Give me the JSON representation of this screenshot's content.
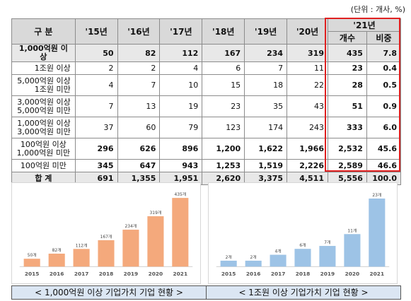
{
  "unit_note": "(단위 : 개사, %)",
  "table": {
    "header": {
      "category": "구  분",
      "years": [
        "'15년",
        "'16년",
        "'17년",
        "'18년",
        "'19년",
        "'20년"
      ],
      "y21": "'21년",
      "count": "개수",
      "share": "비중"
    },
    "rows": [
      {
        "label": "1,000억원 이상",
        "values": [
          "50",
          "82",
          "112",
          "167",
          "234",
          "319"
        ],
        "count": "435",
        "share": "7.8"
      },
      {
        "label": "1조원 이상",
        "values": [
          "2",
          "2",
          "4",
          "6",
          "7",
          "11"
        ],
        "count": "23",
        "share": "0.4"
      },
      {
        "label": "5,000억원 이상\n1조원 미만",
        "values": [
          "4",
          "7",
          "10",
          "15",
          "18",
          "22"
        ],
        "count": "28",
        "share": "0.5"
      },
      {
        "label": "3,000억원 이상\n5,000억원 미만",
        "values": [
          "7",
          "13",
          "19",
          "23",
          "35",
          "43"
        ],
        "count": "51",
        "share": "0.9"
      },
      {
        "label": "1,000억원 이상\n3,000억원 미만",
        "values": [
          "37",
          "60",
          "79",
          "123",
          "174",
          "243"
        ],
        "count": "333",
        "share": "6.0"
      },
      {
        "label": "100억원 이상\n1,000억원 미만",
        "values": [
          "296",
          "626",
          "896",
          "1,200",
          "1,622",
          "1,966"
        ],
        "count": "2,532",
        "share": "45.6"
      },
      {
        "label": "100억원 미만",
        "values": [
          "345",
          "647",
          "943",
          "1,253",
          "1,519",
          "2,226"
        ],
        "count": "2,589",
        "share": "46.6"
      },
      {
        "label": "합  계",
        "values": [
          "691",
          "1,355",
          "1,951",
          "2,620",
          "3,375",
          "4,511"
        ],
        "count": "5,556",
        "share": "100.0"
      }
    ]
  },
  "chart_data": [
    {
      "type": "bar",
      "categories": [
        "2015",
        "2016",
        "2017",
        "2018",
        "2019",
        "2020",
        "2021"
      ],
      "values": [
        50,
        82,
        112,
        167,
        234,
        319,
        435
      ],
      "data_labels": [
        "50개",
        "82개",
        "112개",
        "167개",
        "234개",
        "319개",
        "435개"
      ],
      "title": "< 1,000억원 이상 기업가치 기업 현황 >",
      "color": "#f4a97c",
      "ylim": [
        0,
        450
      ]
    },
    {
      "type": "bar",
      "categories": [
        "2015",
        "2016",
        "2017",
        "2018",
        "2019",
        "2020",
        "2021"
      ],
      "values": [
        2,
        2,
        4,
        6,
        7,
        11,
        23
      ],
      "data_labels": [
        "2개",
        "2개",
        "4개",
        "6개",
        "7개",
        "11개",
        "23개"
      ],
      "title": "< 1조원 이상 기업가치 기업 현황 >",
      "color": "#9dc3e6",
      "ylim": [
        0,
        24
      ]
    }
  ]
}
